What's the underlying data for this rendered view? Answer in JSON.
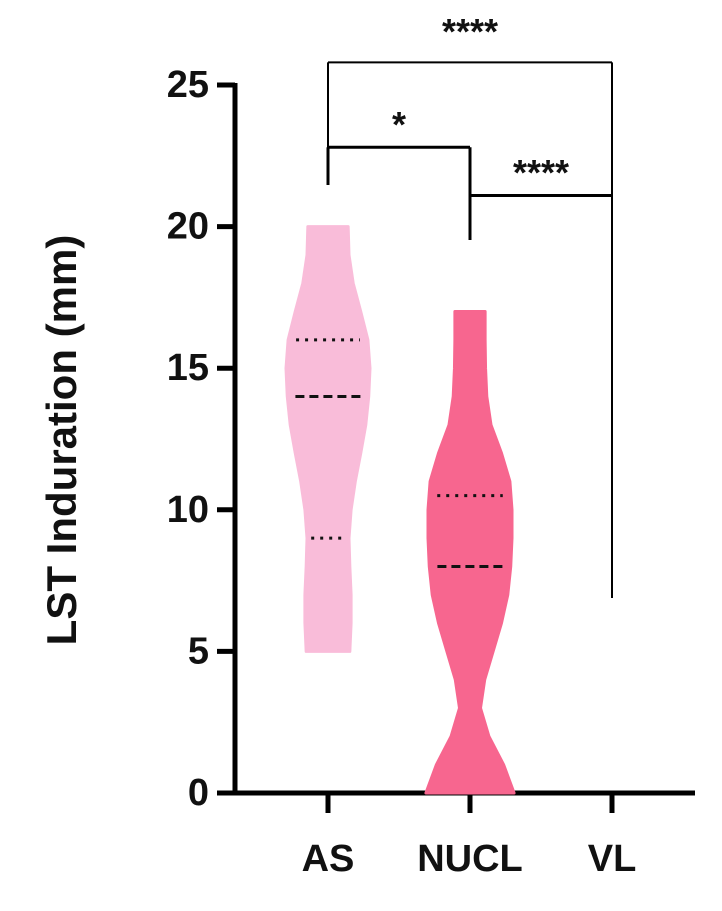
{
  "chart_data": {
    "type": "violin",
    "y_label": "LST Induration (mm)",
    "categories": [
      "AS",
      "NUCL",
      "VL"
    ],
    "ylim": [
      0,
      25
    ],
    "yticks": [
      0,
      5,
      10,
      15,
      20,
      25
    ],
    "series": [
      {
        "name": "AS",
        "color": "#f9bcd9",
        "median": 14,
        "quartiles": [
          9,
          16
        ],
        "profile": {
          "y": [
            5,
            6,
            7,
            8,
            9,
            10,
            11,
            12,
            13,
            14,
            15,
            16,
            17,
            18,
            19,
            20
          ],
          "width": [
            0.52,
            0.55,
            0.55,
            0.52,
            0.5,
            0.55,
            0.65,
            0.78,
            0.9,
            0.97,
            1.0,
            0.95,
            0.78,
            0.6,
            0.5,
            0.48
          ]
        }
      },
      {
        "name": "NUCL",
        "color": "#f7668f",
        "median": 8,
        "quartiles": [
          10.5
        ],
        "profile": {
          "y": [
            0,
            1,
            2,
            3,
            4,
            5,
            6,
            7,
            8,
            9,
            10,
            11,
            12,
            13,
            14,
            15,
            16,
            17
          ],
          "width": [
            1.05,
            0.8,
            0.45,
            0.25,
            0.35,
            0.55,
            0.75,
            0.9,
            0.97,
            1.0,
            1.0,
            0.95,
            0.75,
            0.5,
            0.4,
            0.37,
            0.36,
            0.36
          ]
        }
      }
    ],
    "comparisons": [
      {
        "from": 0,
        "to": 2,
        "label": "****",
        "y": 25.8
      },
      {
        "from": 0,
        "to": 1,
        "label": "*",
        "y": 22.8
      },
      {
        "from": 1,
        "to": 2,
        "label": "****",
        "y": 21.1
      }
    ]
  }
}
